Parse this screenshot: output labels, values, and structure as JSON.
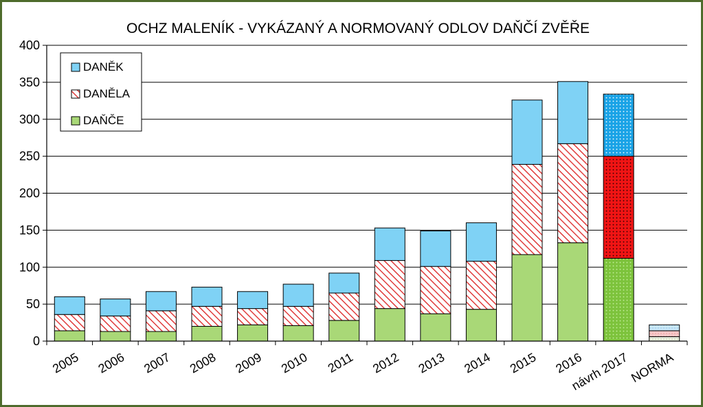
{
  "chart_data": {
    "type": "bar",
    "stacked": true,
    "title": "OCHZ MALENÍK - VYKÁZANÝ A NORMOVANÝ ODLOV DAŇČÍ ZVĚŘE",
    "xlabel": "",
    "ylabel": "",
    "ylim": [
      0,
      400
    ],
    "yticks": [
      0,
      50,
      100,
      150,
      200,
      250,
      300,
      350,
      400
    ],
    "grid": true,
    "legend_position": "top-left",
    "categories": [
      "2005",
      "2006",
      "2007",
      "2008",
      "2009",
      "2010",
      "2011",
      "2012",
      "2013",
      "2014",
      "2015",
      "2016",
      "návrh 2017",
      "NORMA"
    ],
    "series": [
      {
        "name": "DAŇČE",
        "color": "#a9d877",
        "values": [
          14,
          13,
          13,
          20,
          22,
          21,
          28,
          44,
          37,
          43,
          117,
          133,
          112,
          6
        ]
      },
      {
        "name": "DANĚLA",
        "color": "#e03c3c",
        "values": [
          22,
          21,
          28,
          27,
          22,
          26,
          37,
          65,
          64,
          65,
          122,
          134,
          138,
          8
        ]
      },
      {
        "name": "DANĚK",
        "color": "#7fd2f5",
        "values": [
          24,
          23,
          26,
          26,
          23,
          30,
          27,
          44,
          48,
          52,
          87,
          84,
          84,
          8
        ]
      }
    ]
  }
}
